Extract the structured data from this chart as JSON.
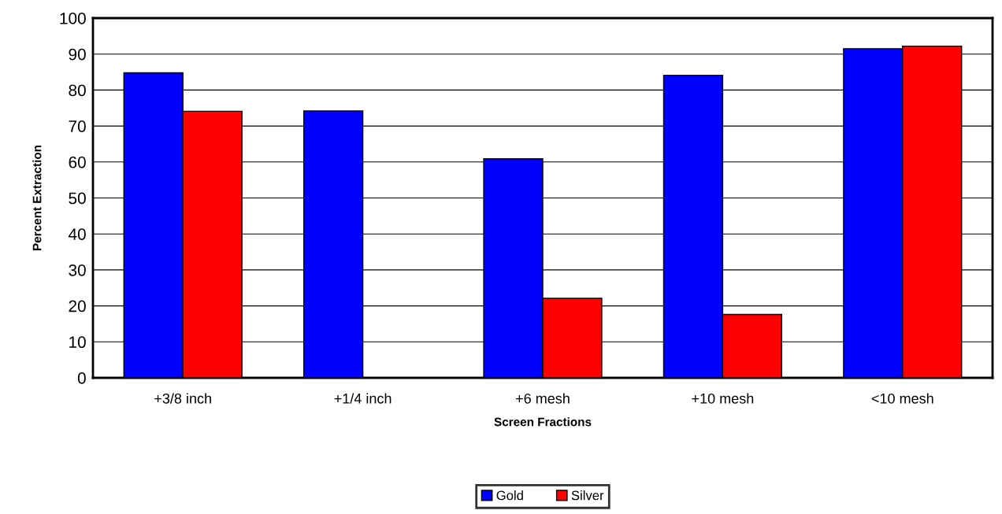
{
  "chart_data": {
    "type": "bar",
    "xlabel": "Screen Fractions",
    "ylabel": "Percent Extraction",
    "categories": [
      "+3/8 inch",
      "+1/4 inch",
      "+6 mesh",
      "+10 mesh",
      "<10 mesh"
    ],
    "series": [
      {
        "name": "Gold",
        "color": "#0000ff",
        "values": [
          84.8,
          74.2,
          60.9,
          84.1,
          91.5
        ]
      },
      {
        "name": "Silver",
        "color": "#ff0000",
        "values": [
          74.1,
          null,
          22.1,
          17.6,
          92.2
        ]
      }
    ],
    "ylim": [
      0,
      100
    ],
    "yticks": [
      0,
      10,
      20,
      30,
      40,
      50,
      60,
      70,
      80,
      90,
      100
    ],
    "grid": "y",
    "legend": "bottom"
  }
}
